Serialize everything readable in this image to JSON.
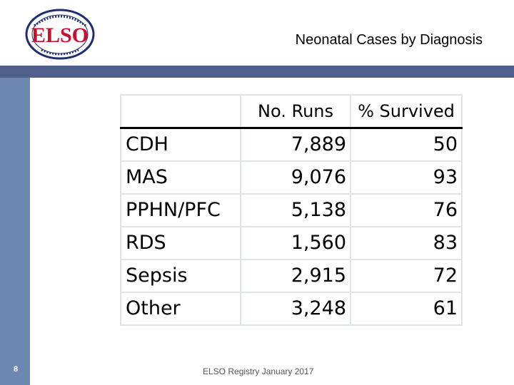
{
  "slide": {
    "title": "Neonatal Cases by Diagnosis",
    "page_number": "8",
    "footer": "ELSO Registry January 2017",
    "logo_text": "ELSO",
    "logo_ring_text": "EXTRACORPOREAL LIFE SUPPORT ORGANIZATION",
    "colors": {
      "band_dark": "#4f5f8c",
      "band_light": "#6d87b3",
      "logo_red": "#c8102e",
      "logo_navy": "#1e2d6e"
    }
  },
  "table": {
    "headers": [
      "",
      "No. Runs",
      "% Survived"
    ],
    "rows": [
      {
        "diagnosis": "CDH",
        "runs": "7,889",
        "survived": "50"
      },
      {
        "diagnosis": "MAS",
        "runs": "9,076",
        "survived": "93"
      },
      {
        "diagnosis": "PPHN/PFC",
        "runs": "5,138",
        "survived": "76"
      },
      {
        "diagnosis": "RDS",
        "runs": "1,560",
        "survived": "83"
      },
      {
        "diagnosis": "Sepsis",
        "runs": "2,915",
        "survived": "72"
      },
      {
        "diagnosis": "Other",
        "runs": "3,248",
        "survived": "61"
      }
    ]
  }
}
